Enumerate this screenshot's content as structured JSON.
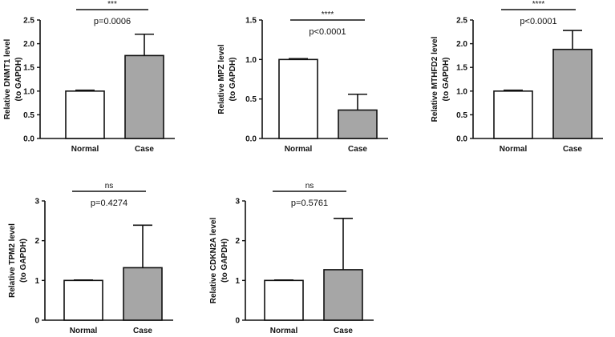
{
  "chart_data": [
    {
      "type": "bar",
      "id": "dnmt1",
      "categories": [
        "Normal",
        "Case"
      ],
      "values": [
        1.0,
        1.75
      ],
      "errors": [
        0.02,
        0.45
      ],
      "colors": [
        "#ffffff",
        "#a6a6a6"
      ],
      "ylabel_lines": [
        "Relative DNMT1  level",
        "(to GAPDH)"
      ],
      "ylim": [
        0,
        2.5
      ],
      "yticks": [
        0,
        0.5,
        1.0,
        1.5,
        2.0,
        2.5
      ],
      "ytick_labels": [
        "0.0",
        "0.5",
        "1.0",
        "1.5",
        "2.0",
        "2.5"
      ],
      "significance": "***",
      "pvalue": "p=0.0006"
    },
    {
      "type": "bar",
      "id": "mpz",
      "categories": [
        "Normal",
        "Case"
      ],
      "values": [
        1.0,
        0.36
      ],
      "errors": [
        0.01,
        0.2
      ],
      "colors": [
        "#ffffff",
        "#a6a6a6"
      ],
      "ylabel_lines": [
        "Relative MPZ level",
        "(to GAPDH)"
      ],
      "ylim": [
        0,
        1.5
      ],
      "yticks": [
        0,
        0.5,
        1.0,
        1.5
      ],
      "ytick_labels": [
        "0.0",
        "0.5",
        "1.0",
        "1.5"
      ],
      "significance": "****",
      "pvalue": "p<0.0001"
    },
    {
      "type": "bar",
      "id": "mthfd2",
      "categories": [
        "Normal",
        "Case"
      ],
      "values": [
        1.0,
        1.88
      ],
      "errors": [
        0.02,
        0.4
      ],
      "colors": [
        "#ffffff",
        "#a6a6a6"
      ],
      "ylabel_lines": [
        "Relative MTHFD2  level",
        "(to GAPDH)"
      ],
      "ylim": [
        0,
        2.5
      ],
      "yticks": [
        0,
        0.5,
        1.0,
        1.5,
        2.0,
        2.5
      ],
      "ytick_labels": [
        "0.0",
        "0.5",
        "1.0",
        "1.5",
        "2.0",
        "2.5"
      ],
      "significance": "****",
      "pvalue": "p<0.0001"
    },
    {
      "type": "bar",
      "id": "tpm2",
      "categories": [
        "Normal",
        "Case"
      ],
      "values": [
        1.0,
        1.32
      ],
      "errors": [
        0.01,
        1.07
      ],
      "colors": [
        "#ffffff",
        "#a6a6a6"
      ],
      "ylabel_lines": [
        "Relative TPM2  level",
        "(to GAPDH)"
      ],
      "ylim": [
        0,
        3
      ],
      "yticks": [
        0,
        1,
        2,
        3
      ],
      "ytick_labels": [
        "0",
        "1",
        "2",
        "3"
      ],
      "significance": "ns",
      "pvalue": "p=0.4274"
    },
    {
      "type": "bar",
      "id": "cdkn2a",
      "categories": [
        "Normal",
        "Case"
      ],
      "values": [
        1.0,
        1.27
      ],
      "errors": [
        0.01,
        1.29
      ],
      "colors": [
        "#ffffff",
        "#a6a6a6"
      ],
      "ylabel_lines": [
        "Relative CDKN2A  level",
        "(to GAPDH)"
      ],
      "ylim": [
        0,
        3
      ],
      "yticks": [
        0,
        1,
        2,
        3
      ],
      "ytick_labels": [
        "0",
        "1",
        "2",
        "3"
      ],
      "significance": "ns",
      "pvalue": "p=0.5761"
    }
  ]
}
